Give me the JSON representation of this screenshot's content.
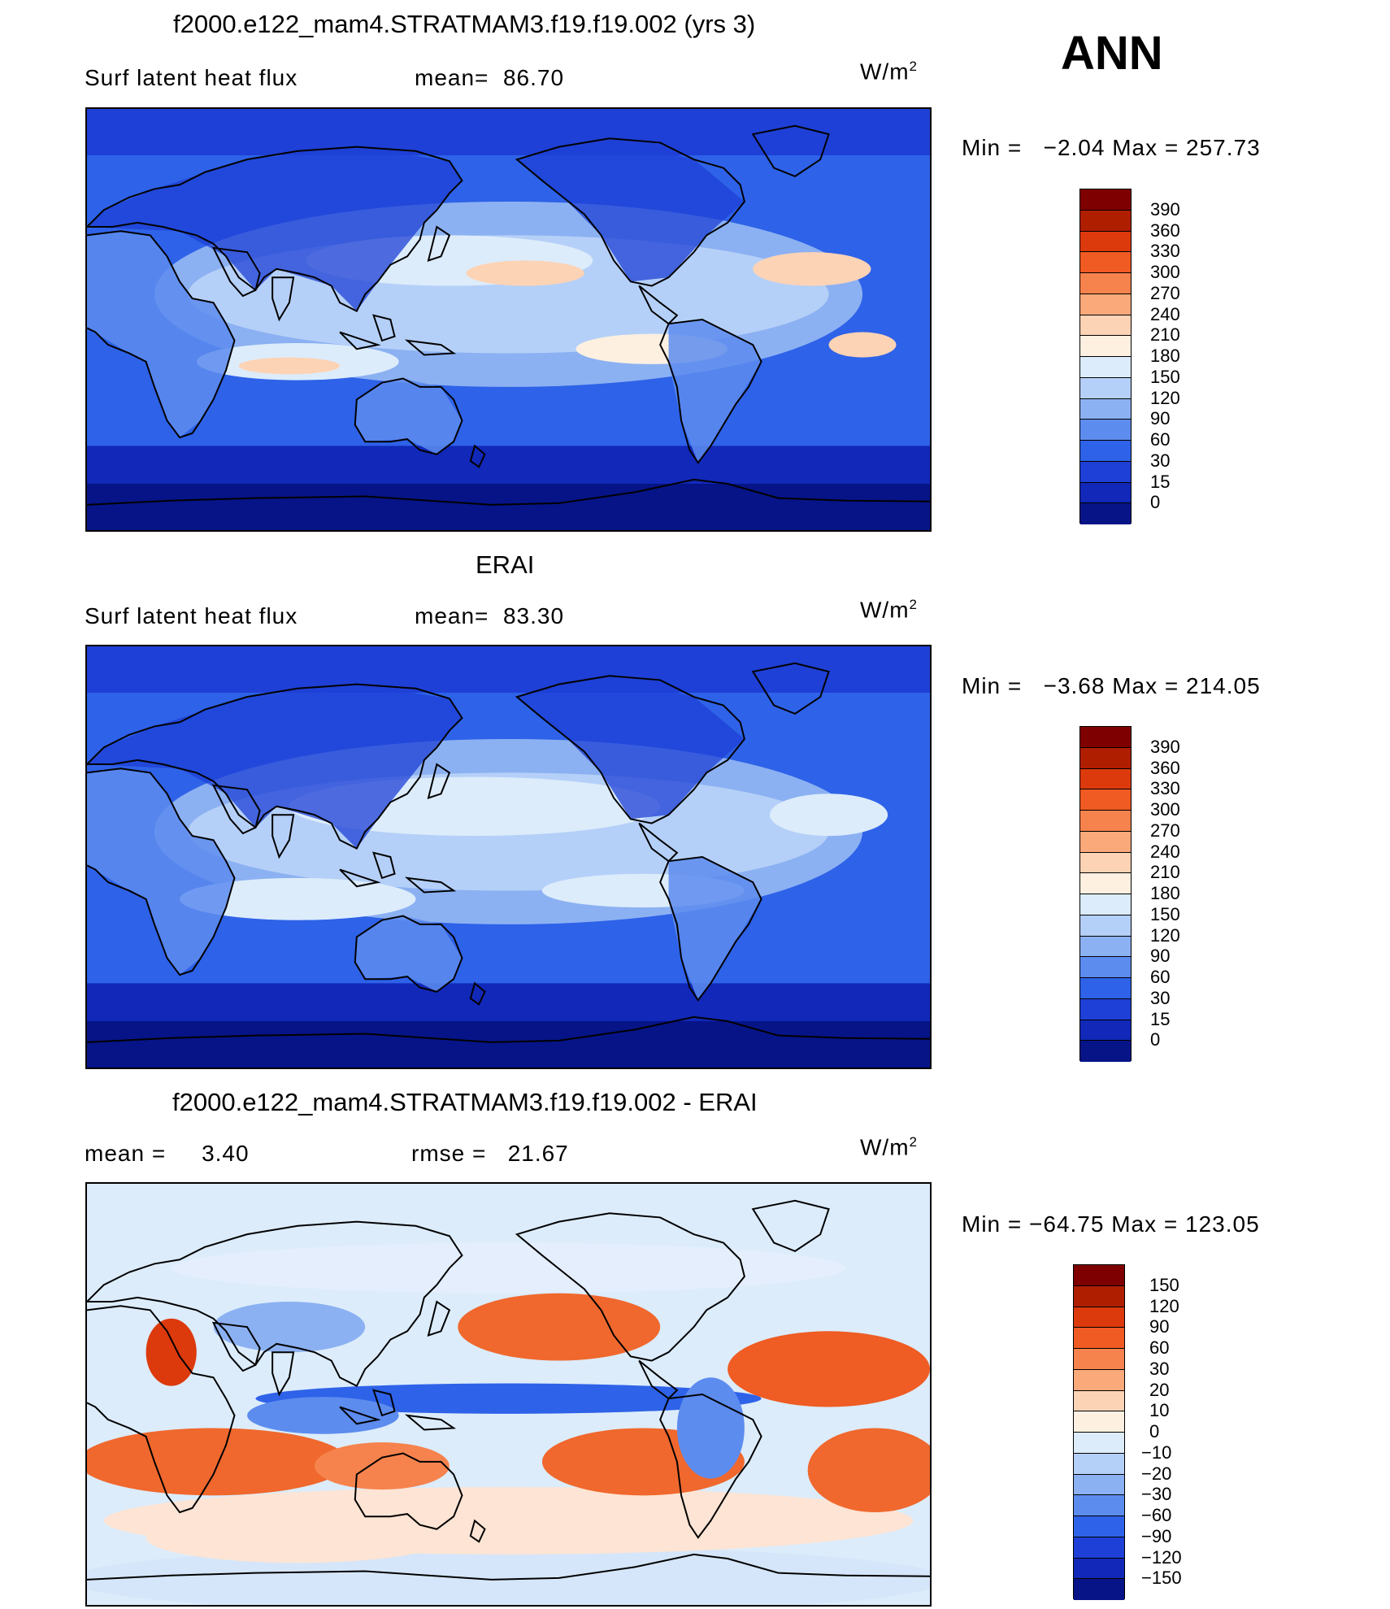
{
  "season": "ANN",
  "panels": [
    {
      "id": "model",
      "title": "f2000.e122_mam4.STRATMAM3.f19.f19.002 (yrs 3)",
      "left_text": "Surf latent heat flux",
      "mid_text": "mean=  86.70",
      "units": "W/m",
      "units_sup": "2",
      "minmax": "Min =   −2.04 Max = 257.73",
      "colorbar_levels": [
        "390",
        "360",
        "330",
        "300",
        "270",
        "240",
        "210",
        "180",
        "150",
        "120",
        "90",
        "60",
        "30",
        "15",
        "0"
      ],
      "colorbar_colors": [
        "#7f0000",
        "#b01e00",
        "#dc3a0c",
        "#f05a23",
        "#f6834d",
        "#f9a97a",
        "#fdd3b5",
        "#fdf0e1",
        "#dcecfb",
        "#b5d0f8",
        "#8cb1f2",
        "#5d8cef",
        "#2e62e8",
        "#1e40d6",
        "#1128b8",
        "#061487"
      ],
      "map_style": "model"
    },
    {
      "id": "obs",
      "title": "ERAI",
      "left_text": "Surf latent heat flux",
      "mid_text": "mean=  83.30",
      "units": "W/m",
      "units_sup": "2",
      "minmax": "Min =   −3.68 Max = 214.05",
      "colorbar_levels": [
        "390",
        "360",
        "330",
        "300",
        "270",
        "240",
        "210",
        "180",
        "150",
        "120",
        "90",
        "60",
        "30",
        "15",
        "0"
      ],
      "colorbar_colors": [
        "#7f0000",
        "#b01e00",
        "#dc3a0c",
        "#f05a23",
        "#f6834d",
        "#f9a97a",
        "#fdd3b5",
        "#fdf0e1",
        "#dcecfb",
        "#b5d0f8",
        "#8cb1f2",
        "#5d8cef",
        "#2e62e8",
        "#1e40d6",
        "#1128b8",
        "#061487"
      ],
      "map_style": "obs"
    },
    {
      "id": "diff",
      "title": "f2000.e122_mam4.STRATMAM3.f19.f19.002 - ERAI",
      "left_text": "mean =     3.40",
      "mid_text": "rmse =   21.67",
      "units": "W/m",
      "units_sup": "2",
      "minmax": "Min = −64.75 Max = 123.05",
      "colorbar_levels": [
        "150",
        "120",
        "90",
        "60",
        "30",
        "20",
        "10",
        "0",
        "−10",
        "−20",
        "−30",
        "−60",
        "−90",
        "−120",
        "−150"
      ],
      "colorbar_colors": [
        "#7f0000",
        "#b01e00",
        "#dc3a0c",
        "#f05a23",
        "#f6834d",
        "#f9a97a",
        "#fdd3b5",
        "#fdf0e1",
        "#dcecfb",
        "#b5d0f8",
        "#8cb1f2",
        "#5d8cef",
        "#2e62e8",
        "#1e40d6",
        "#1128b8",
        "#061487"
      ],
      "map_style": "diff"
    }
  ]
}
